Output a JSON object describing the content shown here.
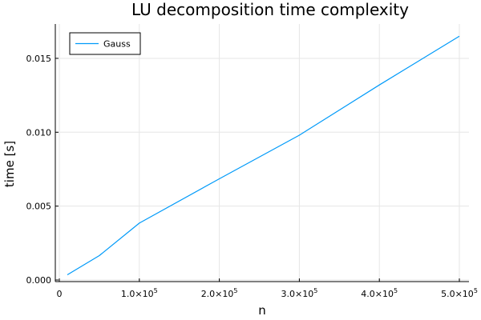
{
  "chart_data": {
    "type": "line",
    "title": "LU decomposition time complexity",
    "xlabel": "n",
    "ylabel": "time [s]",
    "xlim": [
      0,
      500000
    ],
    "ylim": [
      0,
      0.017
    ],
    "grid": true,
    "legend_position": "top-left",
    "x_ticks": [
      {
        "value": 0,
        "label": "0",
        "sup": ""
      },
      {
        "value": 100000,
        "label": "1.0×10",
        "sup": "5"
      },
      {
        "value": 200000,
        "label": "2.0×10",
        "sup": "5"
      },
      {
        "value": 300000,
        "label": "3.0×10",
        "sup": "5"
      },
      {
        "value": 400000,
        "label": "4.0×10",
        "sup": "5"
      },
      {
        "value": 500000,
        "label": "5.0×10",
        "sup": "5"
      }
    ],
    "y_ticks": [
      {
        "value": 0,
        "label": "0.000"
      },
      {
        "value": 0.005,
        "label": "0.005"
      },
      {
        "value": 0.01,
        "label": "0.010"
      },
      {
        "value": 0.015,
        "label": "0.015"
      }
    ],
    "series": [
      {
        "name": "Gauss",
        "color": "#009af9",
        "x": [
          10000,
          50000,
          100000,
          200000,
          300000,
          400000,
          500000
        ],
        "y": [
          0.00035,
          0.00165,
          0.00385,
          0.00685,
          0.0098,
          0.0132,
          0.0165
        ]
      }
    ]
  }
}
